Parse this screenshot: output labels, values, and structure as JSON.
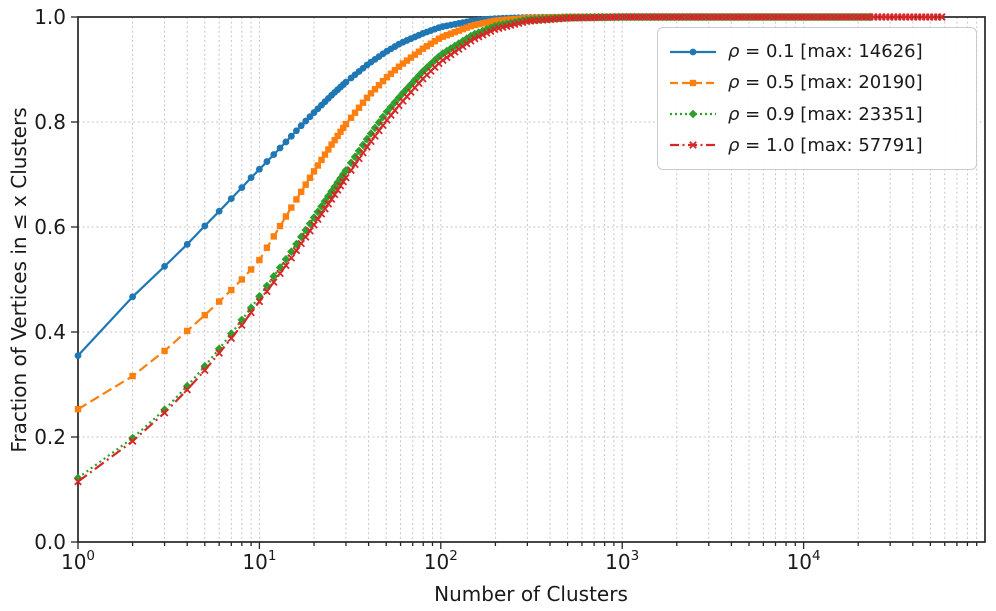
{
  "chart_data": {
    "type": "line",
    "title": "",
    "xlabel": "Number of Clusters",
    "ylabel": "Fraction of Vertices in ≤ x Clusters",
    "x_scale": "log",
    "xlim_exponents": [
      0,
      5
    ],
    "ylim": [
      0,
      1
    ],
    "x_tick_exponents": [
      0,
      1,
      2,
      3,
      4
    ],
    "x_tick_base": "10",
    "y_ticks": [
      0.0,
      0.2,
      0.4,
      0.6,
      0.8,
      1.0
    ],
    "grid": true,
    "grid_color": "#c6c6c6",
    "spine_color": "#262626",
    "text_color": "#1a1a1a",
    "legend_position": "upper right",
    "series": [
      {
        "name": "rho-0.1",
        "label": "ρ = 0.1 [max: 14626]",
        "color": "#1f77b4",
        "linestyle": "solid",
        "marker": "circle",
        "max_clusters": 14626,
        "points": [
          [
            1,
            0.355
          ],
          [
            2,
            0.467
          ],
          [
            3,
            0.525
          ],
          [
            4,
            0.567
          ],
          [
            5,
            0.602
          ],
          [
            6,
            0.63
          ],
          [
            7,
            0.654
          ],
          [
            8,
            0.675
          ],
          [
            9,
            0.694
          ],
          [
            10,
            0.71
          ],
          [
            12,
            0.738
          ],
          [
            14,
            0.762
          ],
          [
            17,
            0.793
          ],
          [
            20,
            0.818
          ],
          [
            25,
            0.851
          ],
          [
            30,
            0.876
          ],
          [
            40,
            0.911
          ],
          [
            50,
            0.934
          ],
          [
            60,
            0.95
          ],
          [
            80,
            0.969
          ],
          [
            100,
            0.981
          ],
          [
            150,
            0.993
          ],
          [
            200,
            0.997
          ],
          [
            300,
            0.999
          ],
          [
            500,
            1.0
          ],
          [
            1000,
            1.0
          ],
          [
            14626,
            1.0
          ]
        ]
      },
      {
        "name": "rho-0.5",
        "label": "ρ = 0.5 [max: 20190]",
        "color": "#ff7f0e",
        "linestyle": "dashed",
        "marker": "square",
        "max_clusters": 20190,
        "points": [
          [
            1,
            0.253
          ],
          [
            2,
            0.316
          ],
          [
            3,
            0.364
          ],
          [
            4,
            0.402
          ],
          [
            5,
            0.432
          ],
          [
            6,
            0.458
          ],
          [
            7,
            0.48
          ],
          [
            8,
            0.5
          ],
          [
            9,
            0.519
          ],
          [
            10,
            0.537
          ],
          [
            12,
            0.582
          ],
          [
            15,
            0.637
          ],
          [
            20,
            0.706
          ],
          [
            25,
            0.757
          ],
          [
            30,
            0.796
          ],
          [
            40,
            0.85
          ],
          [
            50,
            0.884
          ],
          [
            60,
            0.908
          ],
          [
            80,
            0.94
          ],
          [
            100,
            0.961
          ],
          [
            150,
            0.984
          ],
          [
            200,
            0.993
          ],
          [
            300,
            0.998
          ],
          [
            500,
            1.0
          ],
          [
            1000,
            1.0
          ],
          [
            20190,
            1.0
          ]
        ]
      },
      {
        "name": "rho-0.9",
        "label": "ρ = 0.9 [max: 23351]",
        "color": "#2ca02c",
        "linestyle": "dotted",
        "marker": "diamond",
        "max_clusters": 23351,
        "points": [
          [
            1,
            0.122
          ],
          [
            2,
            0.198
          ],
          [
            3,
            0.252
          ],
          [
            4,
            0.297
          ],
          [
            5,
            0.335
          ],
          [
            6,
            0.368
          ],
          [
            7,
            0.397
          ],
          [
            8,
            0.423
          ],
          [
            9,
            0.446
          ],
          [
            10,
            0.468
          ],
          [
            12,
            0.506
          ],
          [
            15,
            0.553
          ],
          [
            20,
            0.618
          ],
          [
            25,
            0.668
          ],
          [
            30,
            0.708
          ],
          [
            40,
            0.772
          ],
          [
            50,
            0.818
          ],
          [
            60,
            0.85
          ],
          [
            80,
            0.897
          ],
          [
            100,
            0.928
          ],
          [
            150,
            0.966
          ],
          [
            200,
            0.983
          ],
          [
            300,
            0.995
          ],
          [
            500,
            0.999
          ],
          [
            1000,
            1.0
          ],
          [
            23351,
            1.0
          ]
        ]
      },
      {
        "name": "rho-1.0",
        "label": "ρ = 1.0 [max: 57791]",
        "color": "#d62728",
        "linestyle": "dashdot",
        "marker": "x",
        "max_clusters": 57791,
        "points": [
          [
            1,
            0.115
          ],
          [
            2,
            0.192
          ],
          [
            3,
            0.246
          ],
          [
            4,
            0.29
          ],
          [
            5,
            0.327
          ],
          [
            6,
            0.36
          ],
          [
            7,
            0.388
          ],
          [
            8,
            0.413
          ],
          [
            9,
            0.437
          ],
          [
            10,
            0.458
          ],
          [
            12,
            0.495
          ],
          [
            15,
            0.541
          ],
          [
            20,
            0.604
          ],
          [
            25,
            0.653
          ],
          [
            30,
            0.694
          ],
          [
            40,
            0.757
          ],
          [
            50,
            0.802
          ],
          [
            60,
            0.835
          ],
          [
            80,
            0.883
          ],
          [
            100,
            0.915
          ],
          [
            150,
            0.957
          ],
          [
            200,
            0.977
          ],
          [
            300,
            0.992
          ],
          [
            500,
            0.998
          ],
          [
            1000,
            1.0
          ],
          [
            57791,
            1.0
          ]
        ]
      }
    ]
  }
}
